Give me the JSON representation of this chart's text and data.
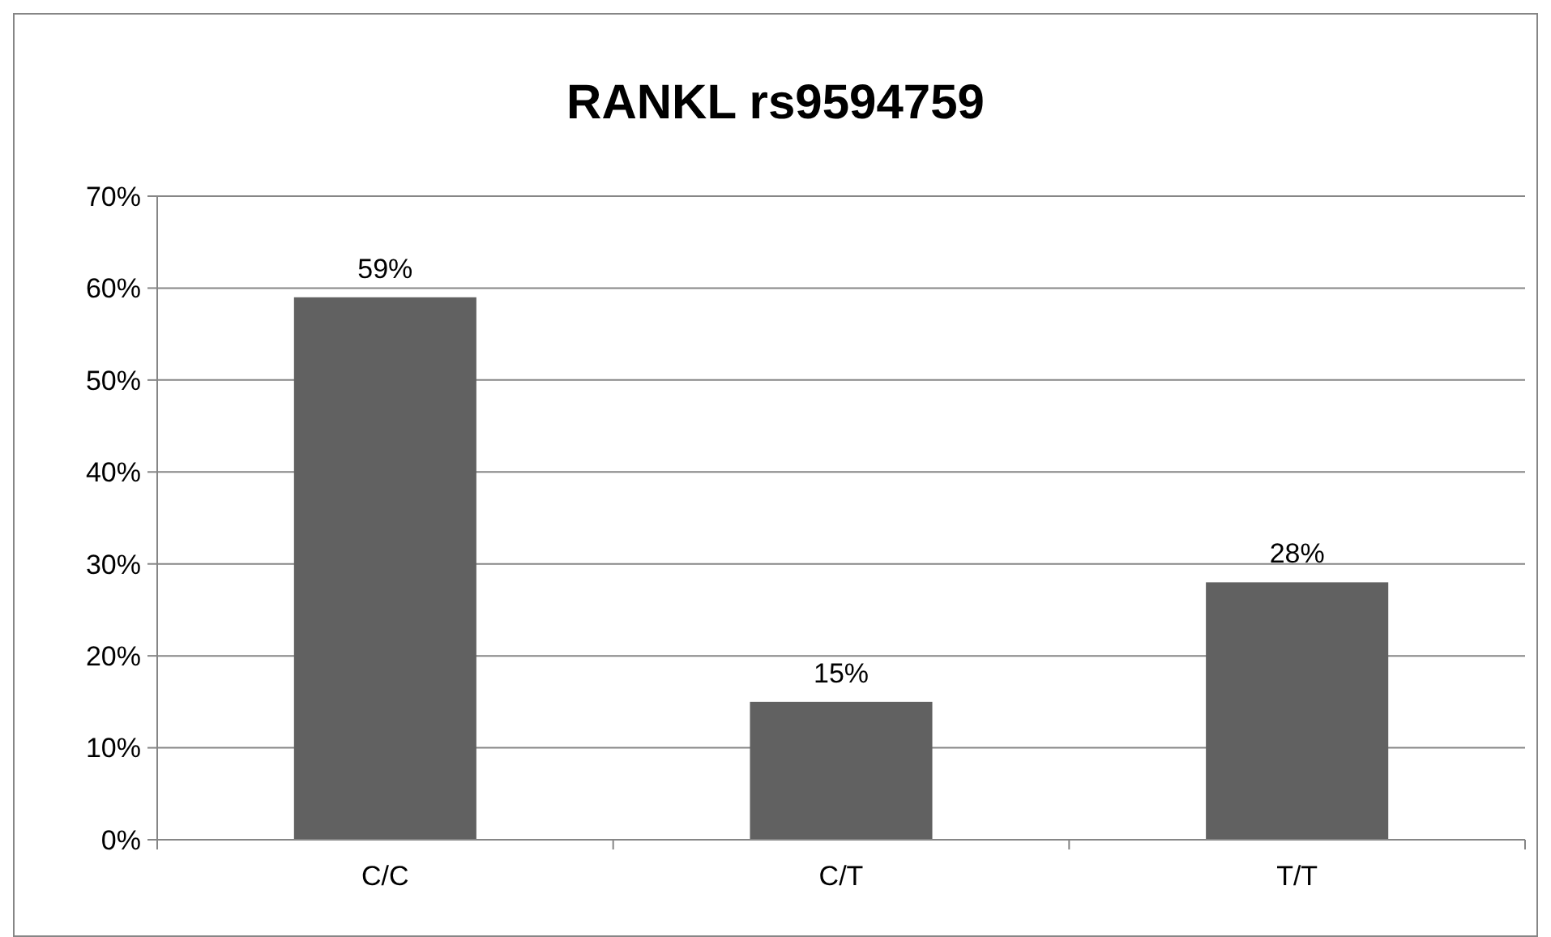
{
  "chart_data": {
    "type": "bar",
    "title": "RANKL rs9594759",
    "categories": [
      "C/C",
      "C/T",
      "T/T"
    ],
    "values": [
      59,
      15,
      28
    ],
    "color": "#616161",
    "value_labels": [
      "59%",
      "15%",
      "28%"
    ],
    "ylim": [
      0,
      70
    ],
    "yticks": [
      {
        "value": 0,
        "label": "0%"
      },
      {
        "value": 10,
        "label": "10%"
      },
      {
        "value": 20,
        "label": "20%"
      },
      {
        "value": 30,
        "label": "30%"
      },
      {
        "value": 40,
        "label": "40%"
      },
      {
        "value": 50,
        "label": "50%"
      },
      {
        "value": 60,
        "label": "60%"
      },
      {
        "value": 70,
        "label": "70%"
      }
    ],
    "grid": "y"
  }
}
